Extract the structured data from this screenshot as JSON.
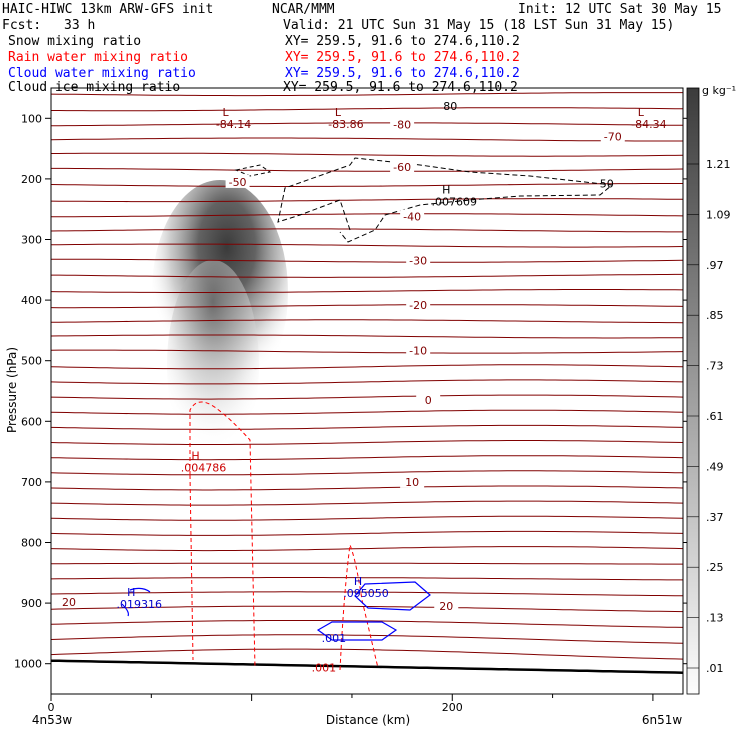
{
  "header": {
    "title_left": "HAIC-HIWC 13km ARW-GFS init",
    "org": "NCAR/MMM",
    "init": "Init: 12 UTC Sat 30 May 15",
    "fcst_label": "Fcst:",
    "fcst_value": "33 h",
    "valid": "Valid: 21 UTC Sun 31 May 15 (18 LST Sun 31 May 15)",
    "fields": [
      {
        "name": "Snow mixing ratio",
        "xy": "XY= 259.5, 91.6 to 274.6,110.2",
        "color": "#000000"
      },
      {
        "name": "Rain water mixing ratio",
        "xy": "XY= 259.5, 91.6 to 274.6,110.2",
        "color": "#ff0000"
      },
      {
        "name": "Cloud water mixing ratio",
        "xy": "XY= 259.5, 91.6 to 274.6,110.2",
        "color": "#0000ff"
      },
      {
        "name": "Cloud ice mixing ratio",
        "xy": "XY= 259.5, 91.6 to 274.6,110.2",
        "color": "#000000"
      }
    ]
  },
  "chart_data": {
    "type": "cross-section",
    "xlabel": "Distance (km)",
    "ylabel": "Pressure (hPa)",
    "xlim": [
      0,
      315
    ],
    "ylim": [
      1050,
      50
    ],
    "x_ticks": [
      {
        "value": 0,
        "label": "0"
      },
      {
        "value": 200,
        "label": "200"
      }
    ],
    "y_ticks": [
      100,
      200,
      300,
      400,
      500,
      600,
      700,
      800,
      900,
      1000
    ],
    "x_end_labels": {
      "left": "4n53w",
      "right": "6n51w"
    },
    "colorbar": {
      "unit": "g kg⁻¹",
      "levels": [
        "1.21",
        "1.09",
        ".97",
        ".85",
        ".73",
        ".61",
        ".49",
        ".37",
        ".25",
        ".13",
        ".01"
      ]
    },
    "temperature_contour_labels": [
      {
        "text": "-80",
        "x": 175,
        "p": 110
      },
      {
        "text": "-70",
        "x": 280,
        "p": 130
      },
      {
        "text": "-60",
        "x": 175,
        "p": 180
      },
      {
        "text": "-50",
        "x": 93,
        "p": 205
      },
      {
        "text": "-40",
        "x": 180,
        "p": 262
      },
      {
        "text": "-30",
        "x": 183,
        "p": 335
      },
      {
        "text": "-20",
        "x": 183,
        "p": 408
      },
      {
        "text": "-10",
        "x": 183,
        "p": 483
      },
      {
        "text": "0",
        "x": 188,
        "p": 565
      },
      {
        "text": "10",
        "x": 180,
        "p": 700
      },
      {
        "text": "20",
        "x": 9,
        "p": 898
      },
      {
        "text": "20",
        "x": 197,
        "p": 905
      }
    ],
    "extrema": [
      {
        "kind": "L",
        "value": "-84.14",
        "x": 87,
        "p": 96,
        "color": "#800000"
      },
      {
        "kind": "L",
        "value": "-83.86",
        "x": 143,
        "p": 96,
        "color": "#800000"
      },
      {
        "kind": "L",
        "value": "-84.34",
        "x": 294,
        "p": 96,
        "color": "#800000"
      },
      {
        "kind": "H",
        "value": ".007609",
        "x": 197,
        "p": 224,
        "color": "#000000"
      },
      {
        "kind": "H",
        "value": ".004786",
        "x": 72,
        "p": 663,
        "color": "#cc0000"
      },
      {
        "kind": "H",
        "value": ".019316",
        "x": 40,
        "p": 888,
        "color": "#0000cc"
      },
      {
        "kind": "H",
        "value": ".095050",
        "x": 153,
        "p": 870,
        "color": "#0000cc"
      }
    ],
    "contour_value_labels": [
      {
        "text": ".001",
        "x": 141,
        "p": 958,
        "color": "#0000cc"
      },
      {
        "text": ".001",
        "x": 136,
        "p": 1006,
        "color": "#cc0000"
      },
      {
        "text": "50",
        "x": 277,
        "p": 208,
        "color": "#000000"
      },
      {
        "text": "80",
        "x": 199,
        "p": 80,
        "color": "#000000"
      }
    ],
    "legend_colors": {
      "temperature": "#800000",
      "rain": "#ff0000",
      "cloud_water": "#0000ff",
      "ice": "#000000"
    }
  }
}
